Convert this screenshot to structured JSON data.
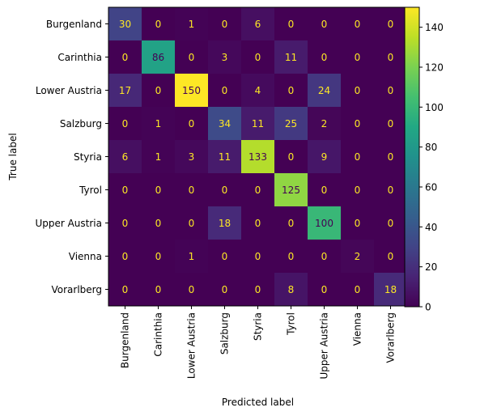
{
  "chart_data": {
    "type": "heatmap",
    "colormap": "viridis",
    "xlabel": "Predicted label",
    "ylabel": "True label",
    "x_categories": [
      "Burgenland",
      "Carinthia",
      "Lower Austria",
      "Salzburg",
      "Styria",
      "Tyrol",
      "Upper Austria",
      "Vienna",
      "Vorarlberg"
    ],
    "y_categories": [
      "Burgenland",
      "Carinthia",
      "Lower Austria",
      "Salzburg",
      "Styria",
      "Tyrol",
      "Upper Austria",
      "Vienna",
      "Vorarlberg"
    ],
    "values": [
      [
        30,
        0,
        1,
        0,
        6,
        0,
        0,
        0,
        0
      ],
      [
        0,
        86,
        0,
        3,
        0,
        11,
        0,
        0,
        0
      ],
      [
        17,
        0,
        150,
        0,
        4,
        0,
        24,
        0,
        0
      ],
      [
        0,
        1,
        0,
        34,
        11,
        25,
        2,
        0,
        0
      ],
      [
        6,
        1,
        3,
        11,
        133,
        0,
        9,
        0,
        0
      ],
      [
        0,
        0,
        0,
        0,
        0,
        125,
        0,
        0,
        0
      ],
      [
        0,
        0,
        0,
        18,
        0,
        0,
        100,
        0,
        0
      ],
      [
        0,
        0,
        1,
        0,
        0,
        0,
        0,
        2,
        0
      ],
      [
        0,
        0,
        0,
        0,
        0,
        8,
        0,
        0,
        18
      ]
    ],
    "colorbar": {
      "range": [
        0,
        150
      ],
      "ticks": [
        0,
        20,
        40,
        60,
        80,
        100,
        120,
        140
      ]
    },
    "grid": false
  }
}
